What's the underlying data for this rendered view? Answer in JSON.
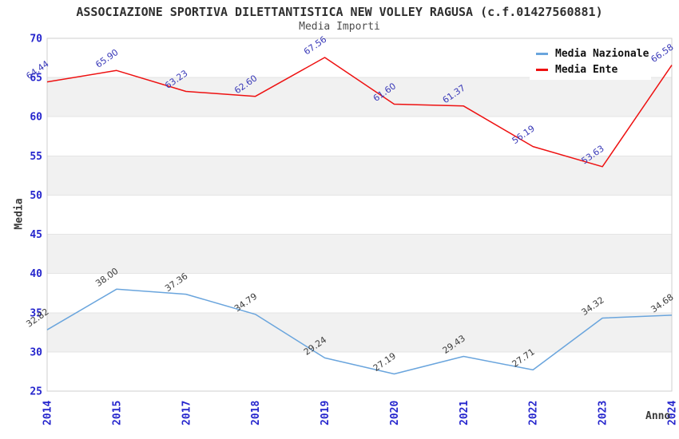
{
  "chart_data": {
    "type": "line",
    "title": "ASSOCIAZIONE SPORTIVA DILETTANTISTICA NEW VOLLEY RAGUSA (c.f.01427560881)",
    "subtitle": "Media Importi",
    "xlabel": "Anno",
    "ylabel": "Media",
    "categories": [
      "2014",
      "2015",
      "2017",
      "2018",
      "2019",
      "2020",
      "2021",
      "2022",
      "2023",
      "2024"
    ],
    "series": [
      {
        "name": "Media Nazionale",
        "color": "#6aa5dd",
        "label_color": "#3d3d3d",
        "values": [
          32.82,
          38.0,
          37.36,
          34.79,
          29.24,
          27.19,
          29.43,
          27.71,
          34.32,
          34.68
        ]
      },
      {
        "name": "Media Ente",
        "color": "#ee1111",
        "label_color": "#3939b8",
        "values": [
          64.44,
          65.9,
          63.23,
          62.6,
          67.56,
          61.6,
          61.37,
          56.19,
          53.63,
          66.58
        ]
      }
    ],
    "ylim": [
      25,
      70
    ],
    "ytick_step": 5,
    "grid": true,
    "legend_position": "top-right",
    "colors": {
      "tick_label": "#2626cd",
      "plot_border": "#cfcfcf",
      "gridline": "#e4e4e4",
      "band_fill": "#f1f1f1",
      "background": "#ffffff"
    }
  }
}
